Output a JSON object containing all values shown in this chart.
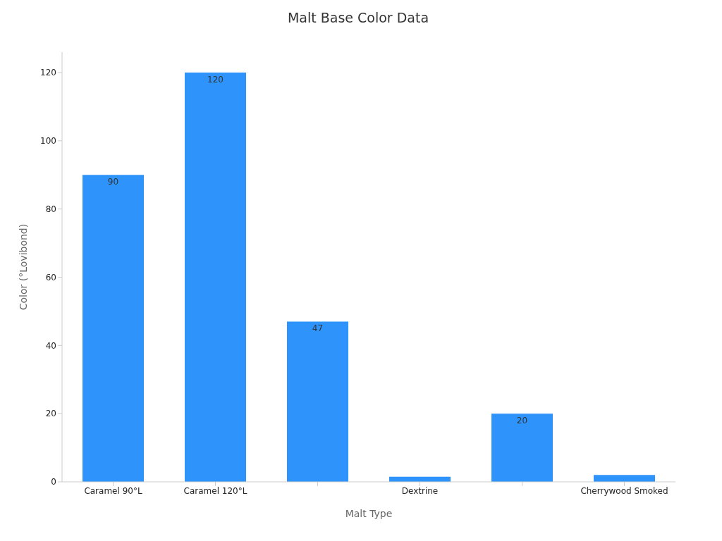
{
  "chart_data": {
    "type": "bar",
    "title": "Malt Base Color Data",
    "xlabel": "Malt Type",
    "ylabel": "Color (°Lovibond)",
    "categories": [
      "Caramel 90°L",
      "Caramel 120°L",
      null,
      "Dextrine",
      null,
      "Cherrywood Smoked"
    ],
    "values": [
      90,
      120,
      47,
      1.5,
      20,
      2
    ],
    "value_labels": [
      "90",
      "120",
      "47",
      null,
      "20",
      null
    ],
    "color": "#2e93fa",
    "ylim": [
      0,
      126
    ],
    "yticks": [
      0,
      20,
      40,
      60,
      80,
      100,
      120
    ],
    "grid": false,
    "legend": false
  }
}
